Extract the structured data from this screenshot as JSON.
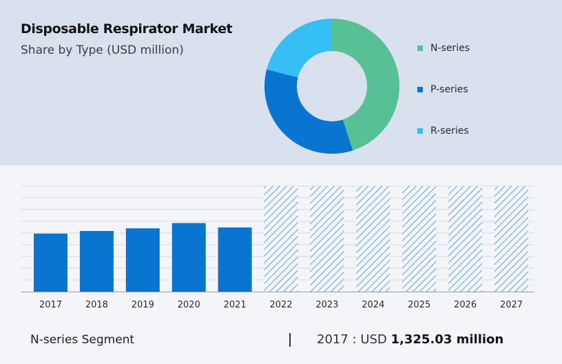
{
  "header": {
    "title": "Disposable Respirator Market",
    "subtitle": "Share by Type (USD million)"
  },
  "footer": {
    "segment_label": "N-series Segment",
    "year_label": "2017 : USD",
    "amount": "1,325.03 million"
  },
  "colors": {
    "n_series": "#57c095",
    "p_series": "#0a74d1",
    "r_series": "#36bff5",
    "bar": "#0a74d1",
    "forecast_hatch": "#1a7ed4",
    "grid": "#d7d9de",
    "axis": "#9a9a9a"
  },
  "chart_data": [
    {
      "type": "pie",
      "variant": "donut",
      "categories": [
        "N-series",
        "P-series",
        "R-series"
      ],
      "values": [
        45,
        34,
        21
      ],
      "legend": "right"
    },
    {
      "type": "bar",
      "categories": [
        "2017",
        "2018",
        "2019",
        "2020",
        "2021",
        "2022",
        "2023",
        "2024",
        "2025",
        "2026",
        "2027"
      ],
      "values": [
        66,
        69,
        72,
        78,
        73,
        null,
        null,
        null,
        null,
        null,
        null
      ],
      "forecast_categories": [
        "2022",
        "2023",
        "2024",
        "2025",
        "2026",
        "2027"
      ],
      "ylim": [
        0,
        120
      ],
      "grid": true
    }
  ]
}
